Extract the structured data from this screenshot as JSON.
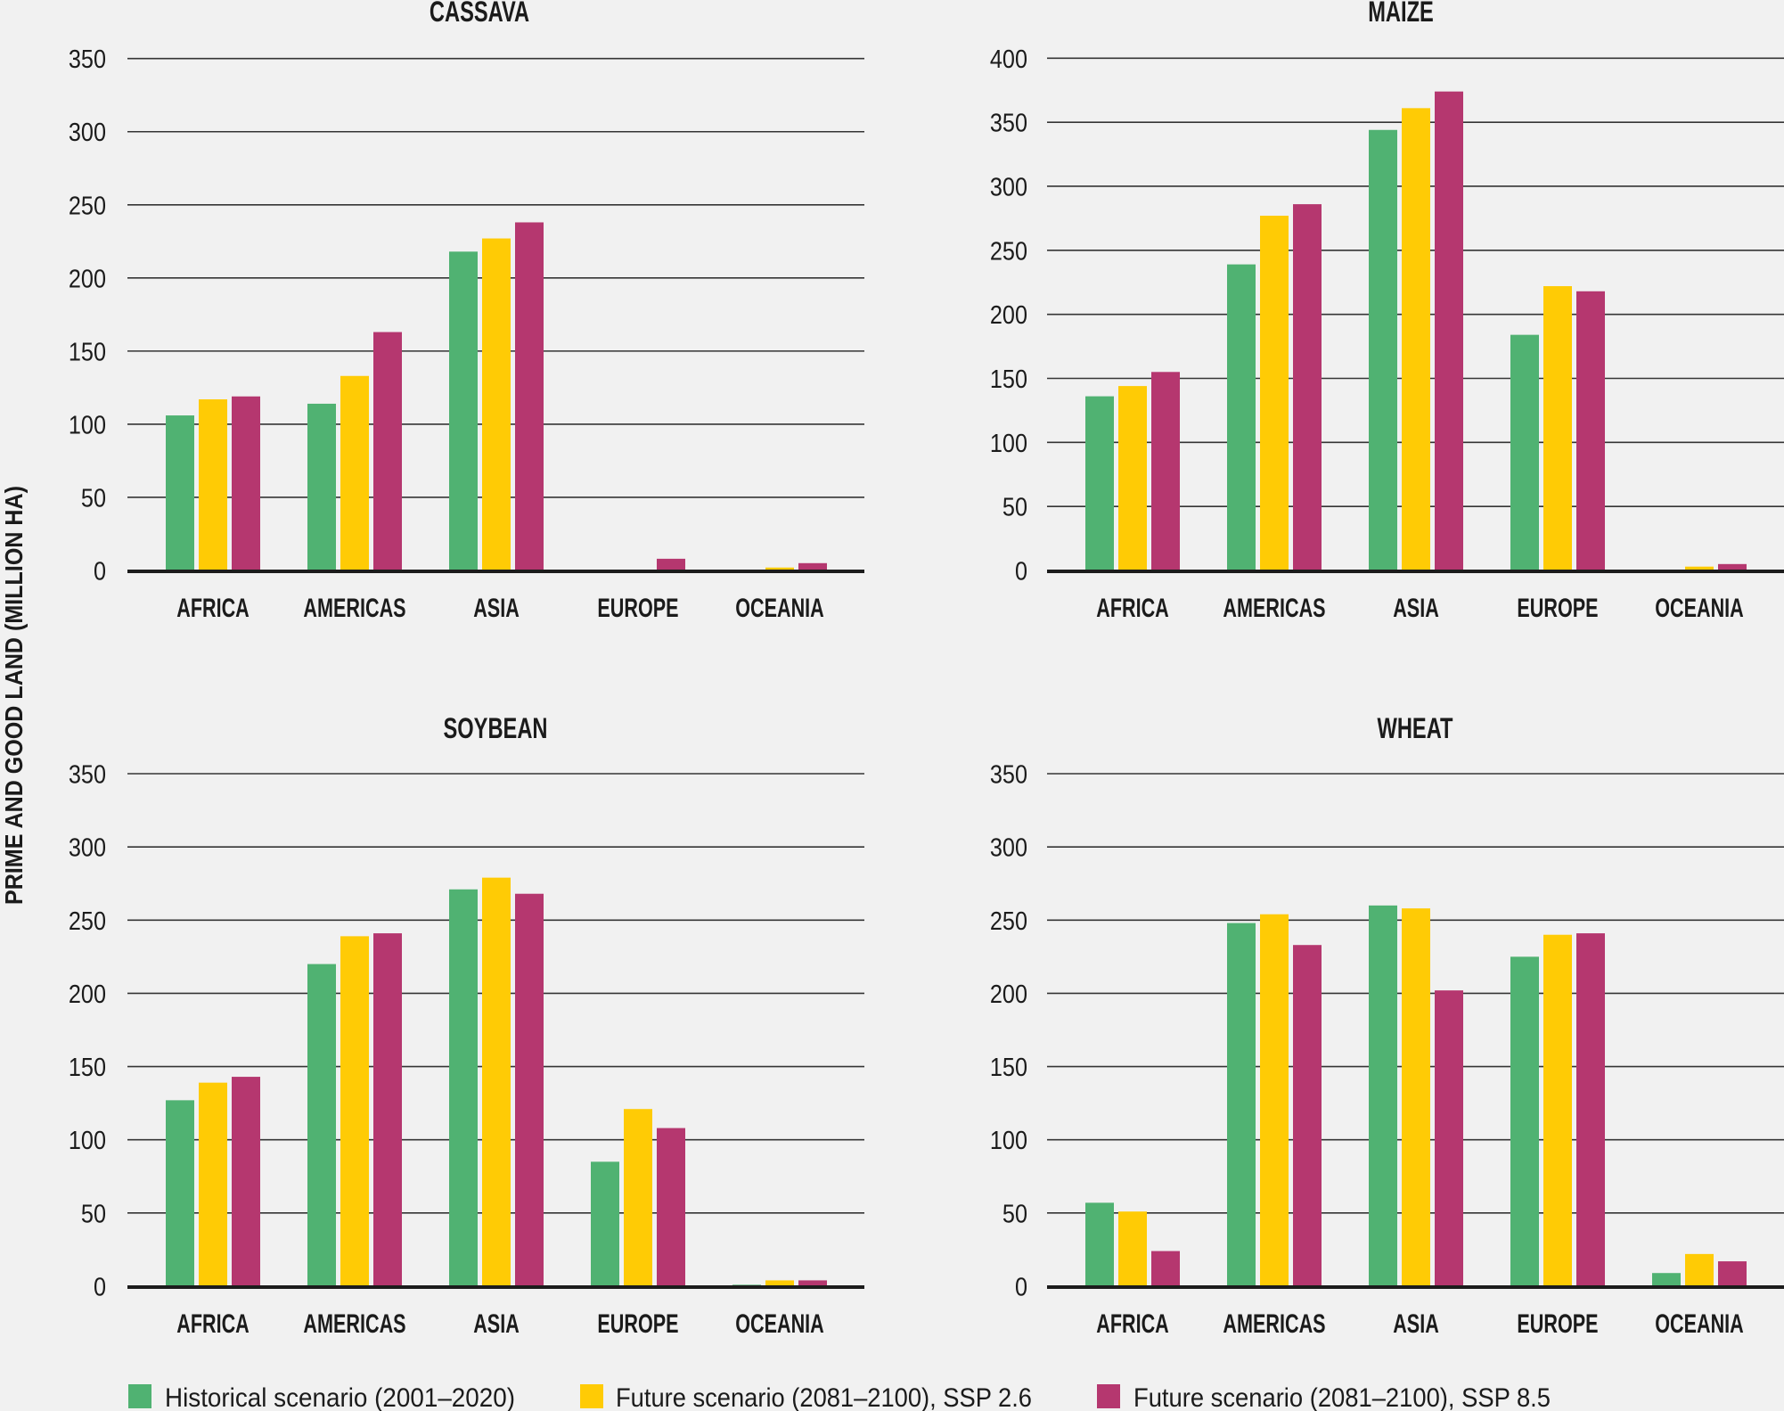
{
  "legend": {
    "placement": "bottom",
    "items": [
      {
        "label": "Historical scenario (2001–2020)",
        "color": "#50b272"
      },
      {
        "label": "Future scenario (2081–2100), SSP 2.6",
        "color": "#ffcb05"
      },
      {
        "label": "Future scenario (2081–2100), SSP 8.5",
        "color": "#b5376f"
      }
    ]
  },
  "chart_data": [
    {
      "type": "bar",
      "title": "CASSAVA",
      "xlabel": "",
      "ylabel": "PRIME AND GOOD LAND (MILLION HA)",
      "ylim": [
        0,
        350
      ],
      "yticks": [
        0,
        50,
        100,
        150,
        200,
        250,
        300,
        350
      ],
      "grid": true,
      "categories": [
        "AFRICA",
        "AMERICAS",
        "ASIA",
        "EUROPE",
        "OCEANIA"
      ],
      "series": [
        {
          "name": "Historical scenario (2001–2020)",
          "color": "#50b272",
          "values": [
            106,
            114,
            218,
            0,
            0
          ]
        },
        {
          "name": "Future scenario (2081–2100), SSP 2.6",
          "color": "#ffcb05",
          "values": [
            117,
            133,
            227,
            0,
            2
          ]
        },
        {
          "name": "Future scenario (2081–2100), SSP 8.5",
          "color": "#b5376f",
          "values": [
            119,
            163,
            238,
            8,
            5
          ]
        }
      ]
    },
    {
      "type": "bar",
      "title": "MAIZE",
      "xlabel": "",
      "ylabel": "PRIME AND GOOD LAND (MILLION HA)",
      "ylim": [
        0,
        400
      ],
      "yticks": [
        0,
        50,
        100,
        150,
        200,
        250,
        300,
        350,
        400
      ],
      "grid": true,
      "categories": [
        "AFRICA",
        "AMERICAS",
        "ASIA",
        "EUROPE",
        "OCEANIA"
      ],
      "series": [
        {
          "name": "Historical scenario (2001–2020)",
          "color": "#50b272",
          "values": [
            136,
            239,
            344,
            184,
            0
          ]
        },
        {
          "name": "Future scenario (2081–2100), SSP 2.6",
          "color": "#ffcb05",
          "values": [
            144,
            277,
            361,
            222,
            3
          ]
        },
        {
          "name": "Future scenario (2081–2100), SSP 8.5",
          "color": "#b5376f",
          "values": [
            155,
            286,
            374,
            218,
            5
          ]
        }
      ]
    },
    {
      "type": "bar",
      "title": "SOYBEAN",
      "xlabel": "",
      "ylabel": "PRIME AND GOOD LAND (MILLION HA)",
      "ylim": [
        0,
        350
      ],
      "yticks": [
        0,
        50,
        100,
        150,
        200,
        250,
        300,
        350
      ],
      "grid": true,
      "categories": [
        "AFRICA",
        "AMERICAS",
        "ASIA",
        "EUROPE",
        "OCEANIA"
      ],
      "series": [
        {
          "name": "Historical scenario (2001–2020)",
          "color": "#50b272",
          "values": [
            127,
            220,
            271,
            85,
            1
          ]
        },
        {
          "name": "Future scenario (2081–2100), SSP 2.6",
          "color": "#ffcb05",
          "values": [
            139,
            239,
            279,
            121,
            4
          ]
        },
        {
          "name": "Future scenario (2081–2100), SSP 8.5",
          "color": "#b5376f",
          "values": [
            143,
            241,
            268,
            108,
            4
          ]
        }
      ]
    },
    {
      "type": "bar",
      "title": "WHEAT",
      "xlabel": "",
      "ylabel": "PRIME AND GOOD LAND (MILLION HA)",
      "ylim": [
        0,
        350
      ],
      "yticks": [
        0,
        50,
        100,
        150,
        200,
        250,
        300,
        350
      ],
      "grid": true,
      "categories": [
        "AFRICA",
        "AMERICAS",
        "ASIA",
        "EUROPE",
        "OCEANIA"
      ],
      "series": [
        {
          "name": "Historical scenario (2001–2020)",
          "color": "#50b272",
          "values": [
            57,
            248,
            260,
            225,
            9
          ]
        },
        {
          "name": "Future scenario (2081–2100), SSP 2.6",
          "color": "#ffcb05",
          "values": [
            51,
            254,
            258,
            240,
            22
          ]
        },
        {
          "name": "Future scenario (2081–2100), SSP 8.5",
          "color": "#b5376f",
          "values": [
            24,
            233,
            202,
            241,
            17
          ]
        }
      ]
    }
  ]
}
